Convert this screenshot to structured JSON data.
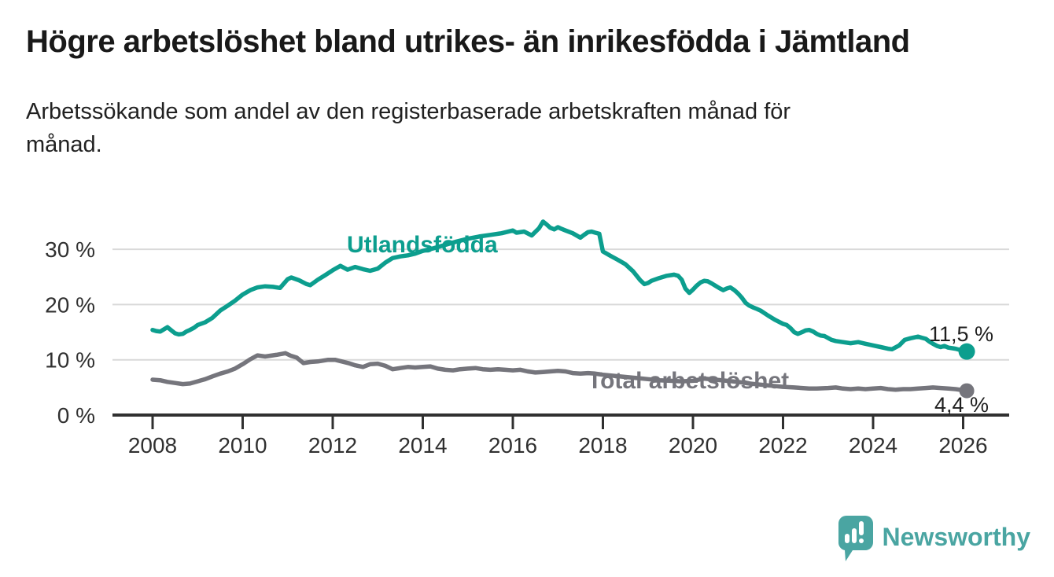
{
  "chart_data": {
    "type": "line",
    "title": "Högre arbetslöshet bland utrikes- än inrikesfödda i Jämtland",
    "subtitle_lines": [
      "Arbetssökande som andel av den registerbaserade arbetskraften månad för",
      "månad."
    ],
    "xlabel": "",
    "ylabel": "",
    "y_unit": "%",
    "grid": "horizontal",
    "legend_position": "inline-labels",
    "xlim": [
      2007.1,
      2027.0
    ],
    "ylim": [
      0,
      36
    ],
    "x_ticks": [
      {
        "v": 2008,
        "label": "2008"
      },
      {
        "v": 2010,
        "label": "2010"
      },
      {
        "v": 2012,
        "label": "2012"
      },
      {
        "v": 2014,
        "label": "2014"
      },
      {
        "v": 2016,
        "label": "2016"
      },
      {
        "v": 2018,
        "label": "2018"
      },
      {
        "v": 2020,
        "label": "2020"
      },
      {
        "v": 2022,
        "label": "2022"
      },
      {
        "v": 2024,
        "label": "2024"
      },
      {
        "v": 2026,
        "label": "2026"
      }
    ],
    "y_ticks": [
      {
        "v": 0,
        "label": "0 %"
      },
      {
        "v": 10,
        "label": "10 %"
      },
      {
        "v": 20,
        "label": "20 %"
      },
      {
        "v": 30,
        "label": "30 %"
      }
    ],
    "series": [
      {
        "name": "Utlandsfödda",
        "color": "#0C9E8E",
        "end_label": "11,5 %",
        "end_value": 11.5,
        "points": [
          [
            2008.0,
            15.4
          ],
          [
            2008.08,
            15.2
          ],
          [
            2008.17,
            15.1
          ],
          [
            2008.25,
            15.5
          ],
          [
            2008.33,
            15.9
          ],
          [
            2008.42,
            15.3
          ],
          [
            2008.5,
            14.8
          ],
          [
            2008.58,
            14.6
          ],
          [
            2008.67,
            14.7
          ],
          [
            2008.75,
            15.1
          ],
          [
            2008.83,
            15.4
          ],
          [
            2008.92,
            15.8
          ],
          [
            2009.0,
            16.3
          ],
          [
            2009.17,
            16.8
          ],
          [
            2009.33,
            17.6
          ],
          [
            2009.5,
            18.9
          ],
          [
            2009.67,
            19.8
          ],
          [
            2009.83,
            20.7
          ],
          [
            2010.0,
            21.8
          ],
          [
            2010.17,
            22.6
          ],
          [
            2010.33,
            23.1
          ],
          [
            2010.5,
            23.3
          ],
          [
            2010.67,
            23.2
          ],
          [
            2010.83,
            23.0
          ],
          [
            2011.0,
            24.6
          ],
          [
            2011.08,
            24.9
          ],
          [
            2011.25,
            24.4
          ],
          [
            2011.42,
            23.7
          ],
          [
            2011.5,
            23.5
          ],
          [
            2011.67,
            24.5
          ],
          [
            2011.83,
            25.3
          ],
          [
            2012.0,
            26.2
          ],
          [
            2012.17,
            27.0
          ],
          [
            2012.33,
            26.3
          ],
          [
            2012.5,
            26.8
          ],
          [
            2012.67,
            26.4
          ],
          [
            2012.83,
            26.1
          ],
          [
            2013.0,
            26.5
          ],
          [
            2013.17,
            27.6
          ],
          [
            2013.33,
            28.4
          ],
          [
            2013.5,
            28.7
          ],
          [
            2013.67,
            28.9
          ],
          [
            2013.83,
            29.2
          ],
          [
            2014.0,
            29.7
          ],
          [
            2014.25,
            30.2
          ],
          [
            2014.5,
            30.8
          ],
          [
            2014.75,
            31.4
          ],
          [
            2015.0,
            31.9
          ],
          [
            2015.25,
            32.3
          ],
          [
            2015.5,
            32.6
          ],
          [
            2015.75,
            32.9
          ],
          [
            2016.0,
            33.4
          ],
          [
            2016.08,
            33.0
          ],
          [
            2016.25,
            33.2
          ],
          [
            2016.42,
            32.5
          ],
          [
            2016.58,
            33.8
          ],
          [
            2016.67,
            35.0
          ],
          [
            2016.75,
            34.5
          ],
          [
            2016.83,
            33.9
          ],
          [
            2016.92,
            33.6
          ],
          [
            2017.0,
            34.0
          ],
          [
            2017.08,
            33.7
          ],
          [
            2017.17,
            33.4
          ],
          [
            2017.33,
            32.9
          ],
          [
            2017.5,
            32.1
          ],
          [
            2017.58,
            32.6
          ],
          [
            2017.67,
            33.1
          ],
          [
            2017.75,
            33.2
          ],
          [
            2017.83,
            33.0
          ],
          [
            2017.92,
            32.8
          ],
          [
            2018.0,
            29.6
          ],
          [
            2018.17,
            28.8
          ],
          [
            2018.33,
            28.1
          ],
          [
            2018.5,
            27.3
          ],
          [
            2018.67,
            26.0
          ],
          [
            2018.83,
            24.4
          ],
          [
            2018.92,
            23.7
          ],
          [
            2019.0,
            23.9
          ],
          [
            2019.08,
            24.3
          ],
          [
            2019.25,
            24.8
          ],
          [
            2019.42,
            25.2
          ],
          [
            2019.58,
            25.4
          ],
          [
            2019.67,
            25.2
          ],
          [
            2019.75,
            24.5
          ],
          [
            2019.83,
            22.9
          ],
          [
            2019.92,
            22.1
          ],
          [
            2020.0,
            22.7
          ],
          [
            2020.08,
            23.4
          ],
          [
            2020.17,
            24.0
          ],
          [
            2020.25,
            24.3
          ],
          [
            2020.33,
            24.2
          ],
          [
            2020.42,
            23.8
          ],
          [
            2020.5,
            23.4
          ],
          [
            2020.58,
            23.0
          ],
          [
            2020.67,
            22.6
          ],
          [
            2020.75,
            22.9
          ],
          [
            2020.83,
            23.1
          ],
          [
            2020.92,
            22.6
          ],
          [
            2021.0,
            22.0
          ],
          [
            2021.08,
            21.3
          ],
          [
            2021.17,
            20.3
          ],
          [
            2021.25,
            19.8
          ],
          [
            2021.33,
            19.5
          ],
          [
            2021.42,
            19.2
          ],
          [
            2021.5,
            18.9
          ],
          [
            2021.67,
            18.0
          ],
          [
            2021.83,
            17.2
          ],
          [
            2022.0,
            16.5
          ],
          [
            2022.08,
            16.3
          ],
          [
            2022.17,
            15.7
          ],
          [
            2022.25,
            15.0
          ],
          [
            2022.33,
            14.7
          ],
          [
            2022.42,
            15.0
          ],
          [
            2022.5,
            15.3
          ],
          [
            2022.58,
            15.4
          ],
          [
            2022.67,
            15.1
          ],
          [
            2022.75,
            14.7
          ],
          [
            2022.83,
            14.4
          ],
          [
            2022.92,
            14.3
          ],
          [
            2023.08,
            13.6
          ],
          [
            2023.17,
            13.4
          ],
          [
            2023.33,
            13.2
          ],
          [
            2023.5,
            13.0
          ],
          [
            2023.67,
            13.2
          ],
          [
            2023.83,
            12.9
          ],
          [
            2024.0,
            12.6
          ],
          [
            2024.17,
            12.3
          ],
          [
            2024.33,
            12.0
          ],
          [
            2024.42,
            11.9
          ],
          [
            2024.58,
            12.6
          ],
          [
            2024.7,
            13.6
          ],
          [
            2024.83,
            13.9
          ],
          [
            2025.0,
            14.2
          ],
          [
            2025.08,
            14.0
          ],
          [
            2025.17,
            13.8
          ],
          [
            2025.25,
            13.3
          ],
          [
            2025.33,
            12.9
          ],
          [
            2025.42,
            12.5
          ],
          [
            2025.5,
            12.3
          ],
          [
            2025.58,
            12.5
          ],
          [
            2025.67,
            12.2
          ],
          [
            2025.75,
            12.1
          ],
          [
            2025.83,
            12.0
          ],
          [
            2025.92,
            11.8
          ],
          [
            2026.0,
            11.6
          ],
          [
            2026.08,
            11.5
          ]
        ]
      },
      {
        "name": "Total arbetslöshet",
        "color": "#75757C",
        "end_label": "4,4 %",
        "end_value": 4.4,
        "points": [
          [
            2008.0,
            6.4
          ],
          [
            2008.17,
            6.3
          ],
          [
            2008.33,
            6.0
          ],
          [
            2008.5,
            5.8
          ],
          [
            2008.67,
            5.6
          ],
          [
            2008.83,
            5.7
          ],
          [
            2009.0,
            6.1
          ],
          [
            2009.17,
            6.5
          ],
          [
            2009.33,
            7.0
          ],
          [
            2009.5,
            7.5
          ],
          [
            2009.67,
            7.9
          ],
          [
            2009.83,
            8.4
          ],
          [
            2010.0,
            9.2
          ],
          [
            2010.17,
            10.1
          ],
          [
            2010.33,
            10.8
          ],
          [
            2010.5,
            10.6
          ],
          [
            2010.75,
            10.9
          ],
          [
            2010.95,
            11.2
          ],
          [
            2011.08,
            10.7
          ],
          [
            2011.2,
            10.4
          ],
          [
            2011.35,
            9.4
          ],
          [
            2011.5,
            9.6
          ],
          [
            2011.67,
            9.7
          ],
          [
            2011.9,
            10.0
          ],
          [
            2012.05,
            10.0
          ],
          [
            2012.2,
            9.7
          ],
          [
            2012.35,
            9.4
          ],
          [
            2012.5,
            9.0
          ],
          [
            2012.67,
            8.7
          ],
          [
            2012.83,
            9.2
          ],
          [
            2013.0,
            9.3
          ],
          [
            2013.17,
            8.9
          ],
          [
            2013.33,
            8.3
          ],
          [
            2013.5,
            8.5
          ],
          [
            2013.67,
            8.7
          ],
          [
            2013.83,
            8.6
          ],
          [
            2014.0,
            8.7
          ],
          [
            2014.17,
            8.8
          ],
          [
            2014.33,
            8.4
          ],
          [
            2014.5,
            8.2
          ],
          [
            2014.67,
            8.1
          ],
          [
            2014.83,
            8.3
          ],
          [
            2015.0,
            8.4
          ],
          [
            2015.17,
            8.5
          ],
          [
            2015.33,
            8.3
          ],
          [
            2015.5,
            8.2
          ],
          [
            2015.67,
            8.3
          ],
          [
            2015.83,
            8.2
          ],
          [
            2016.0,
            8.1
          ],
          [
            2016.17,
            8.2
          ],
          [
            2016.33,
            7.9
          ],
          [
            2016.5,
            7.7
          ],
          [
            2016.67,
            7.8
          ],
          [
            2016.83,
            7.9
          ],
          [
            2017.0,
            8.0
          ],
          [
            2017.17,
            7.9
          ],
          [
            2017.33,
            7.6
          ],
          [
            2017.5,
            7.5
          ],
          [
            2017.67,
            7.6
          ],
          [
            2017.83,
            7.5
          ],
          [
            2018.0,
            7.3
          ],
          [
            2018.25,
            7.1
          ],
          [
            2018.5,
            6.9
          ],
          [
            2018.75,
            6.7
          ],
          [
            2019.0,
            6.5
          ],
          [
            2019.25,
            6.3
          ],
          [
            2019.5,
            6.2
          ],
          [
            2019.75,
            6.1
          ],
          [
            2020.0,
            6.2
          ],
          [
            2020.25,
            6.6
          ],
          [
            2020.5,
            6.4
          ],
          [
            2020.75,
            6.2
          ],
          [
            2021.0,
            6.0
          ],
          [
            2021.25,
            5.7
          ],
          [
            2021.5,
            5.5
          ],
          [
            2021.75,
            5.3
          ],
          [
            2022.0,
            5.1
          ],
          [
            2022.25,
            5.0
          ],
          [
            2022.42,
            4.9
          ],
          [
            2022.58,
            4.8
          ],
          [
            2022.75,
            4.8
          ],
          [
            2023.0,
            4.9
          ],
          [
            2023.17,
            5.0
          ],
          [
            2023.33,
            4.8
          ],
          [
            2023.5,
            4.7
          ],
          [
            2023.67,
            4.8
          ],
          [
            2023.83,
            4.7
          ],
          [
            2024.0,
            4.8
          ],
          [
            2024.17,
            4.9
          ],
          [
            2024.33,
            4.7
          ],
          [
            2024.5,
            4.6
          ],
          [
            2024.67,
            4.7
          ],
          [
            2024.83,
            4.7
          ],
          [
            2025.0,
            4.8
          ],
          [
            2025.17,
            4.9
          ],
          [
            2025.33,
            5.0
          ],
          [
            2025.5,
            4.9
          ],
          [
            2025.67,
            4.8
          ],
          [
            2025.83,
            4.7
          ],
          [
            2026.0,
            4.5
          ],
          [
            2026.08,
            4.4
          ]
        ]
      }
    ]
  },
  "branding": {
    "logo_text": "Newsworthy",
    "logo_color": "#4AA5A2"
  },
  "palette": {
    "axis": "#303030",
    "gridline": "#D9D9D9",
    "tick_label": "#303030",
    "end_label": "#1F1F1F"
  }
}
